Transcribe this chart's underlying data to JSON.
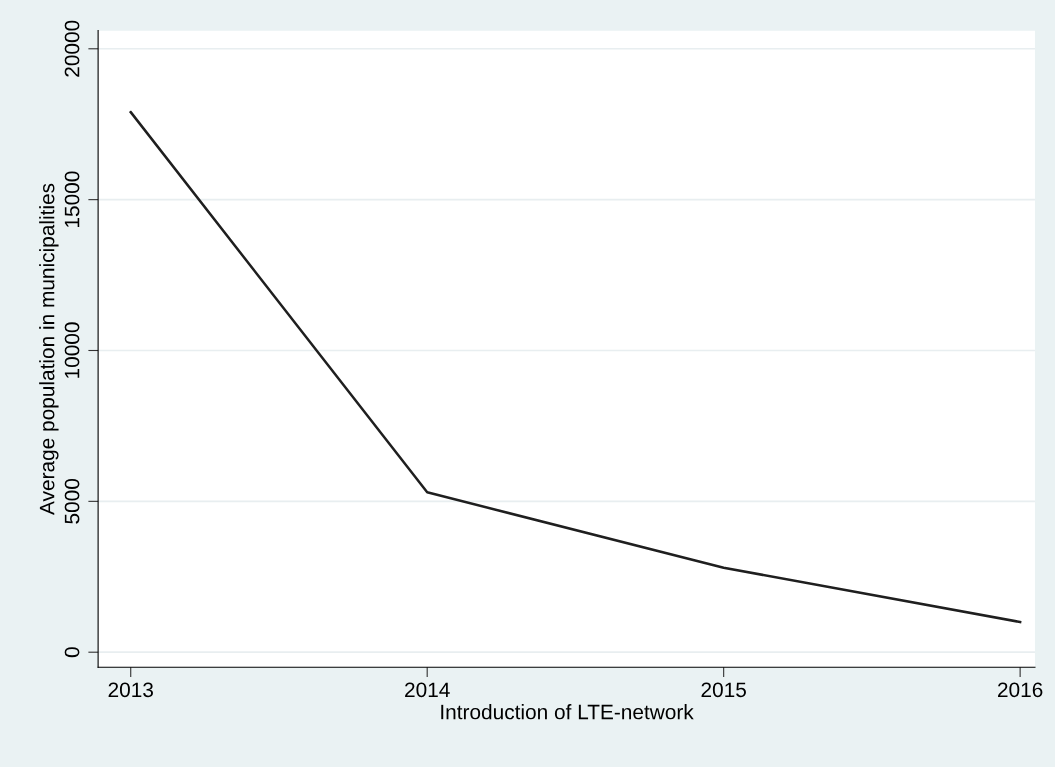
{
  "chart_data": {
    "type": "line",
    "xlabel": "Introduction of LTE-network",
    "ylabel": "Average population in municipalities",
    "x": [
      2013,
      2014,
      2015,
      2016
    ],
    "series": [
      {
        "color": "#1f1f1f",
        "values": [
          17900,
          5300,
          2800,
          1000
        ]
      }
    ],
    "xlim": [
      2012.89,
      2016.05
    ],
    "xticks": [
      2013,
      2014,
      2015,
      2016
    ],
    "ylim": [
      -500,
      20600
    ],
    "yticks": [
      0,
      5000,
      10000,
      15000,
      20000
    ],
    "grid": "y",
    "marker": "none",
    "line_style": "solid",
    "legend": false
  }
}
